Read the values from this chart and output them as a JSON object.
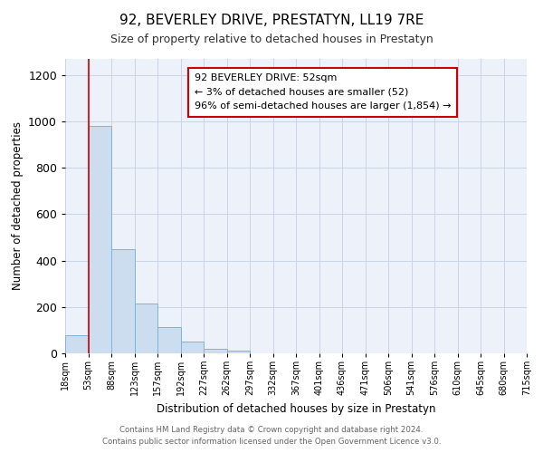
{
  "title": "92, BEVERLEY DRIVE, PRESTATYN, LL19 7RE",
  "subtitle": "Size of property relative to detached houses in Prestatyn",
  "xlabel": "Distribution of detached houses by size in Prestatyn",
  "ylabel": "Number of detached properties",
  "bin_labels": [
    "18sqm",
    "53sqm",
    "88sqm",
    "123sqm",
    "157sqm",
    "192sqm",
    "227sqm",
    "262sqm",
    "297sqm",
    "332sqm",
    "367sqm",
    "401sqm",
    "436sqm",
    "471sqm",
    "506sqm",
    "541sqm",
    "576sqm",
    "610sqm",
    "645sqm",
    "680sqm",
    "715sqm"
  ],
  "bar_heights": [
    80,
    980,
    450,
    215,
    115,
    50,
    20,
    10,
    0,
    0,
    0,
    0,
    0,
    0,
    0,
    0,
    0,
    0,
    0,
    0
  ],
  "bar_color": "#ccddf0",
  "bar_edge_color": "#7fb3d8",
  "property_line_x": 1,
  "property_line_color": "#cc0000",
  "ylim": [
    0,
    1270
  ],
  "yticks": [
    0,
    200,
    400,
    600,
    800,
    1000,
    1200
  ],
  "annotation_title": "92 BEVERLEY DRIVE: 52sqm",
  "annotation_line1": "← 3% of detached houses are smaller (52)",
  "annotation_line2": "96% of semi-detached houses are larger (1,854) →",
  "annotation_box_color": "#ffffff",
  "annotation_box_edge": "#cc0000",
  "footer1": "Contains HM Land Registry data © Crown copyright and database right 2024.",
  "footer2": "Contains public sector information licensed under the Open Government Licence v3.0.",
  "background_color": "#edf2fa",
  "grid_color": "#c8d4e8",
  "title_fontsize": 11,
  "subtitle_fontsize": 9
}
